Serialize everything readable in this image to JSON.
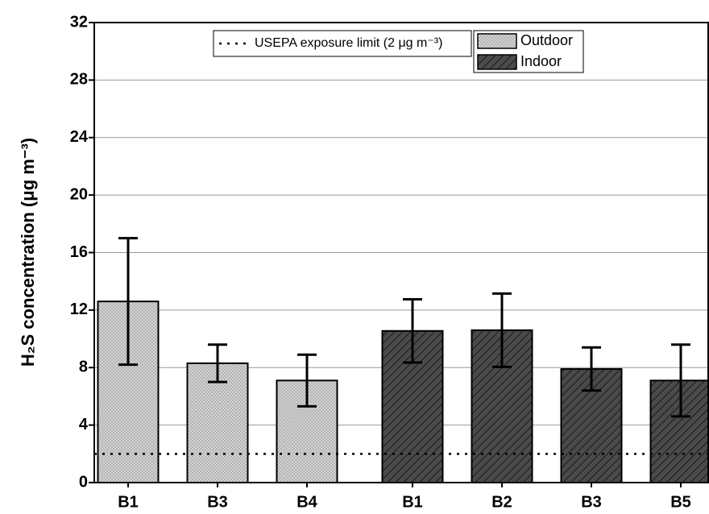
{
  "chart_data": {
    "type": "bar",
    "y_label": "H₂S concentration (μg m⁻³)",
    "categories": [
      "B1",
      "B3",
      "B4",
      "B1",
      "B2",
      "B3",
      "B5"
    ],
    "series": [
      {
        "name": "Outdoor",
        "color": "#d2d2d2",
        "values": [
          12.6,
          8.3,
          7.1,
          null,
          null,
          null,
          null
        ],
        "errors": [
          4.4,
          1.3,
          1.8,
          null,
          null,
          null,
          null
        ]
      },
      {
        "name": "Indoor",
        "color": "#4a4a4a",
        "values": [
          null,
          null,
          null,
          10.55,
          10.6,
          7.9,
          7.1
        ],
        "errors": [
          null,
          null,
          null,
          2.2,
          2.55,
          1.5,
          2.5
        ]
      }
    ],
    "reference_line": {
      "name": "USEPA exposure limit (2 μg m⁻³)",
      "value": 2
    },
    "ylim": [
      0,
      32
    ],
    "yticks": [
      0,
      4,
      8,
      12,
      16,
      20,
      24,
      28,
      32
    ],
    "grid": true
  }
}
